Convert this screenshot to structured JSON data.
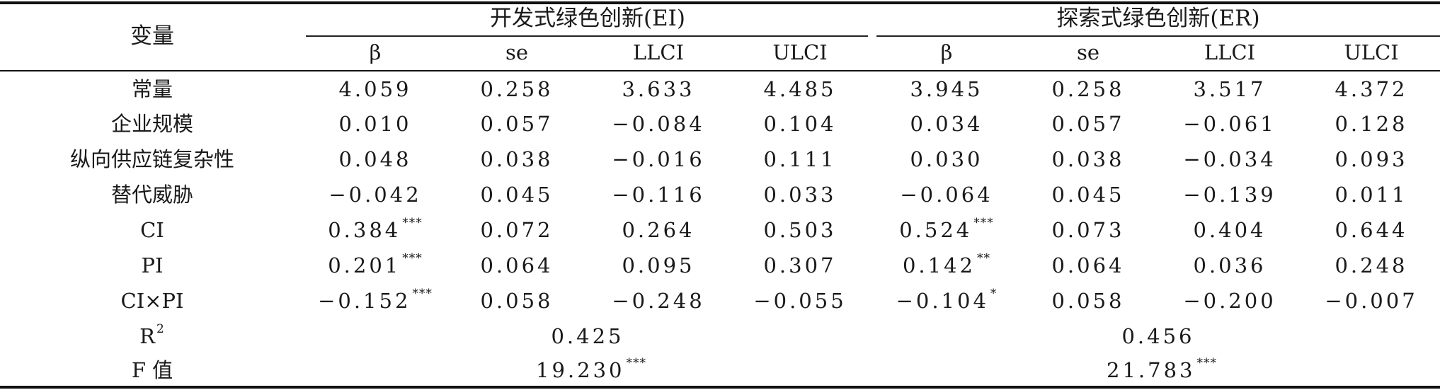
{
  "table": {
    "header": {
      "variable": "变量",
      "group_ei": "开发式绿色创新(EI)",
      "group_er": "探索式绿色创新(ER)",
      "columns": [
        "β",
        "se",
        "LLCI",
        "ULCI",
        "β",
        "se",
        "LLCI",
        "ULCI"
      ]
    },
    "rows": [
      {
        "label": "常量",
        "values": [
          "4.059",
          "0.258",
          "3.633",
          "4.485",
          "3.945",
          "0.258",
          "3.517",
          "4.372"
        ],
        "sig": [
          "",
          "",
          "",
          "",
          "",
          "",
          "",
          ""
        ]
      },
      {
        "label": "企业规模",
        "values": [
          "0.010",
          "0.057",
          "−0.084",
          "0.104",
          "0.034",
          "0.057",
          "−0.061",
          "0.128"
        ],
        "sig": [
          "",
          "",
          "",
          "",
          "",
          "",
          "",
          ""
        ]
      },
      {
        "label": "纵向供应链复杂性",
        "values": [
          "0.048",
          "0.038",
          "−0.016",
          "0.111",
          "0.030",
          "0.038",
          "−0.034",
          "0.093"
        ],
        "sig": [
          "",
          "",
          "",
          "",
          "",
          "",
          "",
          ""
        ]
      },
      {
        "label": "替代威胁",
        "values": [
          "−0.042",
          "0.045",
          "−0.116",
          "0.033",
          "−0.064",
          "0.045",
          "−0.139",
          "0.011"
        ],
        "sig": [
          "",
          "",
          "",
          "",
          "",
          "",
          "",
          ""
        ]
      },
      {
        "label": "CI",
        "values": [
          "0.384",
          "0.072",
          "0.264",
          "0.503",
          "0.524",
          "0.073",
          "0.404",
          "0.644"
        ],
        "sig": [
          "***",
          "",
          "",
          "",
          "***",
          "",
          "",
          ""
        ]
      },
      {
        "label": "PI",
        "values": [
          "0.201",
          "0.064",
          "0.095",
          "0.307",
          "0.142",
          "0.064",
          "0.036",
          "0.248"
        ],
        "sig": [
          "***",
          "",
          "",
          "",
          "**",
          "",
          "",
          ""
        ]
      },
      {
        "label": "CI×PI",
        "values": [
          "−0.152",
          "0.058",
          "−0.248",
          "−0.055",
          "−0.104",
          "0.058",
          "−0.200",
          "−0.007"
        ],
        "sig": [
          "***",
          "",
          "",
          "",
          "*",
          "",
          "",
          ""
        ]
      }
    ],
    "r2": {
      "label_base": "R",
      "label_sup": "2",
      "ei": "0.425",
      "er": "0.456"
    },
    "f": {
      "label": "F 值",
      "ei": "19.230",
      "ei_sig": "***",
      "er": "21.783",
      "er_sig": "***"
    }
  }
}
